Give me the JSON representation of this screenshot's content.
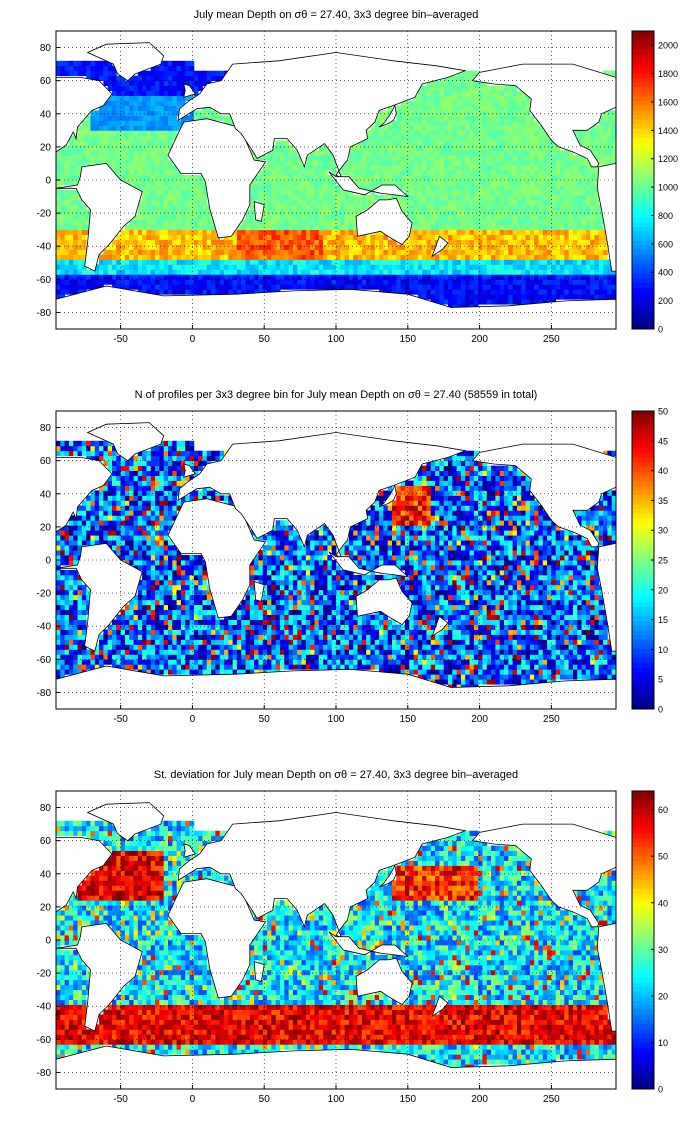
{
  "chart_data": [
    {
      "type": "heatmap",
      "title": "July mean Depth on σθ = 27.40, 3x3 degree bin–averaged",
      "variable": "depth",
      "xlim": [
        -95,
        295
      ],
      "ylim": [
        -90,
        90
      ],
      "xticks": [
        -50,
        0,
        50,
        100,
        150,
        200,
        250
      ],
      "yticks": [
        -80,
        -60,
        -40,
        -20,
        0,
        20,
        40,
        60,
        80
      ],
      "grid": true,
      "colormap": "jet",
      "colorbar": {
        "min": 0,
        "max": 2100,
        "ticks": [
          0,
          200,
          400,
          600,
          800,
          1000,
          1200,
          1400,
          1600,
          1800,
          2000
        ]
      },
      "bin_size_deg": 3
    },
    {
      "type": "heatmap",
      "title": "N of profiles per 3x3 degree bin for July mean Depth on σθ = 27.40 (58559 in total)",
      "variable": "count",
      "total_profiles": 58559,
      "xlim": [
        -95,
        295
      ],
      "ylim": [
        -90,
        90
      ],
      "xticks": [
        -50,
        0,
        50,
        100,
        150,
        200,
        250
      ],
      "yticks": [
        -80,
        -60,
        -40,
        -20,
        0,
        20,
        40,
        60,
        80
      ],
      "grid": true,
      "colormap": "jet",
      "colorbar": {
        "min": 0,
        "max": 50,
        "ticks": [
          0,
          5,
          10,
          15,
          20,
          25,
          30,
          35,
          40,
          45,
          50
        ]
      },
      "bin_size_deg": 3
    },
    {
      "type": "heatmap",
      "title": "St. deviation for July mean Depth on σθ = 27.40, 3x3 degree bin–averaged",
      "variable": "stddev",
      "xlim": [
        -95,
        295
      ],
      "ylim": [
        -90,
        90
      ],
      "xticks": [
        -50,
        0,
        50,
        100,
        150,
        200,
        250
      ],
      "yticks": [
        -80,
        -60,
        -40,
        -20,
        0,
        20,
        40,
        60,
        80
      ],
      "grid": true,
      "colormap": "jet",
      "colorbar": {
        "min": 0,
        "max": 64,
        "ticks": [
          0,
          10,
          20,
          30,
          40,
          50,
          60
        ]
      },
      "bin_size_deg": 3
    }
  ]
}
